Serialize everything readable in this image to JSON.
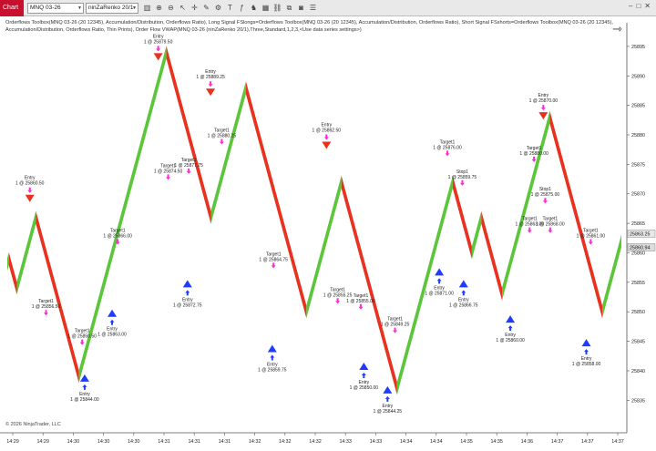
{
  "toolbar": {
    "tab_label": "Chart",
    "instrument": "MNQ 03-26",
    "bar_type": "ninZaRenko 20/1",
    "tool_icons": [
      "bar-chart-icon",
      "zoom-in-icon",
      "zoom-out-icon",
      "pointer-icon",
      "crosshair-icon",
      "pencil-icon",
      "properties-icon",
      "text-icon",
      "indicator-icon",
      "strategy-icon",
      "grid-icon",
      "link-icon",
      "copy-icon",
      "camera-icon",
      "list-icon"
    ],
    "window_icons": [
      "minimize-icon",
      "maximize-icon",
      "close-icon"
    ]
  },
  "legend": {
    "text": "Orderflows Toolbox(MNQ 03-26 (20 12345), Accumulation/Distribution, Orderflows Ratio), Long Signal FSlongs=Orderflows Toolbox(MNQ 03-26 (20 12345), Accumulation/Distribution, Orderflows Ratio), Short Signal FSshorts=Orderflows Toolbox(MNQ 03-26 (20 12345), Accumulation/Distribution, Orderflows Ratio, Thin Prints), Order Flow VWAP(MNQ 03-26 (ninZaRenko 20/1),Three,Standard,1,2,3,<Use data series settings>)"
  },
  "footer": {
    "copyright": "© 2026 NinjaTrader, LLC"
  },
  "chart_data": {
    "type": "renko",
    "y_axis_ticks": [
      25835,
      25840,
      25845,
      25850,
      25855,
      25860,
      25865,
      25870,
      25875,
      25880,
      25885,
      25890,
      25895
    ],
    "ylim": [
      25831.5,
      25899
    ],
    "x_axis_ticks": [
      "14:29",
      "14:29",
      "14:30",
      "14:30",
      "14:30",
      "14:31",
      "14:31",
      "14:31",
      "14:32",
      "14:32",
      "14:32",
      "14:33",
      "14:33",
      "14:34",
      "14:34",
      "14:35",
      "14:35",
      "14:36",
      "14:37",
      "14:37",
      "14:37"
    ],
    "price_boxes": [
      {
        "value": "25863.25",
        "price": 25863.25,
        "color": "#e8e8e8"
      },
      {
        "value": "25860.94",
        "price": 25860.94,
        "color": "#dcdcdc"
      }
    ],
    "colors": {
      "up": "#5cc63b",
      "down": "#e8311e",
      "signal_down": "#e8311e",
      "signal_up": "#1e3cff",
      "target_arrow": "#ff2bd4",
      "entry_arrow": "#1e3cff"
    },
    "swings": [
      {
        "start": 25858,
        "end": 25859
      },
      {
        "start": 25859,
        "end": 25854
      },
      {
        "start": 25854,
        "end": 25866
      },
      {
        "start": 25866,
        "end": 25839
      },
      {
        "start": 25839,
        "end": 25894
      },
      {
        "start": 25894,
        "end": 25866
      },
      {
        "start": 25866,
        "end": 25888
      },
      {
        "start": 25888,
        "end": 25850
      },
      {
        "start": 25850,
        "end": 25872
      },
      {
        "start": 25872,
        "end": 25837
      },
      {
        "start": 25837,
        "end": 25872
      },
      {
        "start": 25872,
        "end": 25860
      },
      {
        "start": 25860,
        "end": 25866
      },
      {
        "start": 25866,
        "end": 25853
      },
      {
        "start": 25853,
        "end": 25883
      },
      {
        "start": 25883,
        "end": 25850
      },
      {
        "start": 25850,
        "end": 25862
      }
    ],
    "signals": [
      {
        "type": "entry-short",
        "label": "Entry",
        "value": "1 @ 25860.50",
        "x": 4.2,
        "price": 25870
      },
      {
        "type": "target",
        "label": "Target1",
        "value": "1 @ 25856.50",
        "x": 6.8,
        "price": 25850
      },
      {
        "type": "entry-long",
        "label": "Entry",
        "value": "1 @ 25844.00",
        "x": 13.0,
        "price": 25838
      },
      {
        "type": "target",
        "label": "Target1",
        "value": "1 @ 25850.50",
        "x": 12.6,
        "price": 25845
      },
      {
        "type": "target",
        "label": "Target1",
        "value": "1 @ 25866.00",
        "x": 18.3,
        "price": 25862
      },
      {
        "type": "entry-long",
        "label": "Entry",
        "value": "1 @ 25863.00",
        "x": 17.4,
        "price": 25849
      },
      {
        "type": "entry-short",
        "label": "Entry",
        "value": "1 @ 25879.50",
        "x": 24.8,
        "price": 25894
      },
      {
        "type": "target",
        "label": "Target1",
        "value": "1 @ 25874.50",
        "x": 26.4,
        "price": 25873
      },
      {
        "type": "target",
        "label": "Target1",
        "value": "1 @ 25877.75",
        "x": 29.7,
        "price": 25874
      },
      {
        "type": "entry-long",
        "label": "Entry",
        "value": "1 @ 25872.75",
        "x": 29.5,
        "price": 25854
      },
      {
        "type": "entry-short",
        "label": "Entry",
        "value": "1 @ 25889.25",
        "x": 33.2,
        "price": 25888
      },
      {
        "type": "target",
        "label": "Target1",
        "value": "1 @ 25880.25",
        "x": 35.0,
        "price": 25879
      },
      {
        "type": "target",
        "label": "Target1",
        "value": "1 @ 25864.75",
        "x": 43.3,
        "price": 25858
      },
      {
        "type": "entry-long",
        "label": "Entry",
        "value": "1 @ 25859.75",
        "x": 43.1,
        "price": 25843
      },
      {
        "type": "entry-short",
        "label": "Entry",
        "value": "1 @ 25862.50",
        "x": 51.8,
        "price": 25879
      },
      {
        "type": "target",
        "label": "Target1",
        "value": "1 @ 25855.25",
        "x": 53.6,
        "price": 25852
      },
      {
        "type": "target",
        "label": "Target1",
        "value": "1 @ 25855.00",
        "x": 57.3,
        "price": 25851
      },
      {
        "type": "entry-long",
        "label": "Entry",
        "value": "1 @ 25850.00",
        "x": 57.8,
        "price": 25840
      },
      {
        "type": "target",
        "label": "Target1",
        "value": "1 @ 25849.25",
        "x": 62.8,
        "price": 25847
      },
      {
        "type": "entry-long",
        "label": "Entry",
        "value": "1 @ 25844.25",
        "x": 61.6,
        "price": 25836
      },
      {
        "type": "target",
        "label": "Target1",
        "value": "1 @ 25876.00",
        "x": 71.2,
        "price": 25877
      },
      {
        "type": "stop",
        "label": "Stop1",
        "value": "1 @ 25859.75",
        "x": 73.6,
        "price": 25872
      },
      {
        "type": "entry-long",
        "label": "Entry",
        "value": "1 @ 25871.00",
        "x": 69.9,
        "price": 25856
      },
      {
        "type": "entry-long",
        "label": "Entry",
        "value": "1 @ 25866.75",
        "x": 73.8,
        "price": 25854
      },
      {
        "type": "entry-short",
        "label": "Entry",
        "value": "1 @ 25870.00",
        "x": 86.6,
        "price": 25884
      },
      {
        "type": "target",
        "label": "Target1",
        "value": "1 @ 25863.00",
        "x": 84.4,
        "price": 25864
      },
      {
        "type": "target",
        "label": "Target1",
        "value": "1 @ 25880.00",
        "x": 85.1,
        "price": 25876
      },
      {
        "type": "stop",
        "label": "Stop1",
        "value": "1 @ 25875.00",
        "x": 86.9,
        "price": 25869
      },
      {
        "type": "target",
        "label": "Target1",
        "value": "1 @ 25868.00",
        "x": 87.7,
        "price": 25864
      },
      {
        "type": "entry-long",
        "label": "Entry",
        "value": "1 @ 25860.00",
        "x": 81.3,
        "price": 25848
      },
      {
        "type": "target",
        "label": "Target1",
        "value": "1 @ 25861.00",
        "x": 94.2,
        "price": 25862
      },
      {
        "type": "entry-long",
        "label": "Entry",
        "value": "1 @ 25858.00",
        "x": 93.5,
        "price": 25844
      }
    ]
  }
}
